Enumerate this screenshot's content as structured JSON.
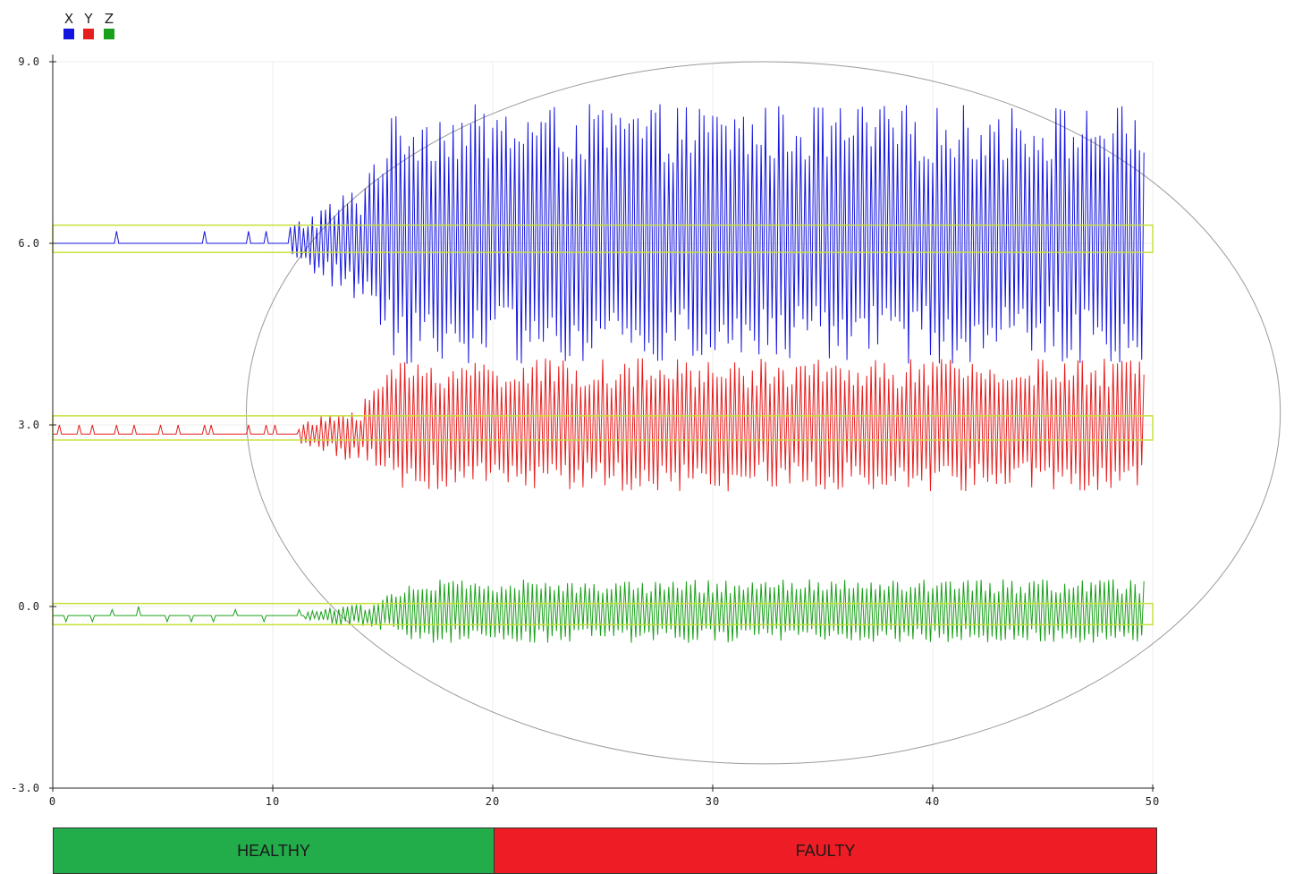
{
  "legend": [
    {
      "label": "X",
      "color": "#1515e0"
    },
    {
      "label": "Y",
      "color": "#e61e1e"
    },
    {
      "label": "Z",
      "color": "#1aa01a"
    }
  ],
  "status": {
    "healthy": {
      "label": "HEALTHY",
      "color": "#22ac4a"
    },
    "faulty": {
      "label": "FAULTY",
      "color": "#ee1c24"
    }
  },
  "chart_data": {
    "type": "line",
    "xlim": [
      0,
      50
    ],
    "ylim": [
      -3.0,
      9.0
    ],
    "x_ticks": [
      "0",
      "10",
      "20",
      "30",
      "40",
      "50"
    ],
    "y_ticks": [
      "9.0",
      "6.0",
      "3.0",
      "0.0",
      "-3.0"
    ],
    "grid": true,
    "legend_position": "top-left",
    "healthy_range": [
      0,
      20
    ],
    "faulty_range": [
      20,
      50
    ],
    "threshold_bands": [
      {
        "series": "X",
        "ymin": 5.85,
        "ymax": 6.3
      },
      {
        "series": "Y",
        "ymin": 2.75,
        "ymax": 3.15
      },
      {
        "series": "Z",
        "ymin": -0.3,
        "ymax": 0.05
      }
    ],
    "anomaly_ellipse": {
      "cx": 32.3,
      "cy": 3.2,
      "rx": 23.5,
      "ry": 5.8
    },
    "series": [
      {
        "name": "X",
        "color": "#1515e0",
        "baseline": 6.0,
        "spikes": [
          [
            2.9,
            6.2
          ],
          [
            6.9,
            6.2
          ],
          [
            8.9,
            6.2
          ],
          [
            9.7,
            6.2
          ]
        ],
        "transition_start": 10.8,
        "transition_end": 14.0,
        "fault_start": 14.2,
        "fault_min": 4.0,
        "fault_max": 8.3,
        "end": 49.6
      },
      {
        "name": "Y",
        "color": "#e61e1e",
        "baseline": 2.85,
        "spikes": [
          [
            0.3,
            3.0
          ],
          [
            1.2,
            3.0
          ],
          [
            1.8,
            3.0
          ],
          [
            2.9,
            3.0
          ],
          [
            3.7,
            3.0
          ],
          [
            4.9,
            3.0
          ],
          [
            5.7,
            3.0
          ],
          [
            6.9,
            3.0
          ],
          [
            7.2,
            3.0
          ],
          [
            8.9,
            3.0
          ],
          [
            9.7,
            3.0
          ],
          [
            10.1,
            3.0
          ]
        ],
        "transition_start": 11.2,
        "transition_end": 14.0,
        "fault_start": 14.2,
        "fault_min": 1.9,
        "fault_max": 4.1,
        "end": 49.6
      },
      {
        "name": "Z",
        "color": "#1aa01a",
        "baseline": -0.15,
        "spikes": [
          [
            0.6,
            -0.25
          ],
          [
            1.8,
            -0.25
          ],
          [
            2.7,
            -0.05
          ],
          [
            3.9,
            0.0
          ],
          [
            5.2,
            -0.25
          ],
          [
            6.3,
            -0.25
          ],
          [
            7.3,
            -0.25
          ],
          [
            8.3,
            -0.05
          ],
          [
            9.6,
            -0.25
          ],
          [
            11.2,
            -0.05
          ]
        ],
        "transition_start": 11.5,
        "transition_end": 15.0,
        "fault_start": 15.0,
        "fault_min": -0.6,
        "fault_max": 0.45,
        "end": 49.6
      }
    ]
  }
}
